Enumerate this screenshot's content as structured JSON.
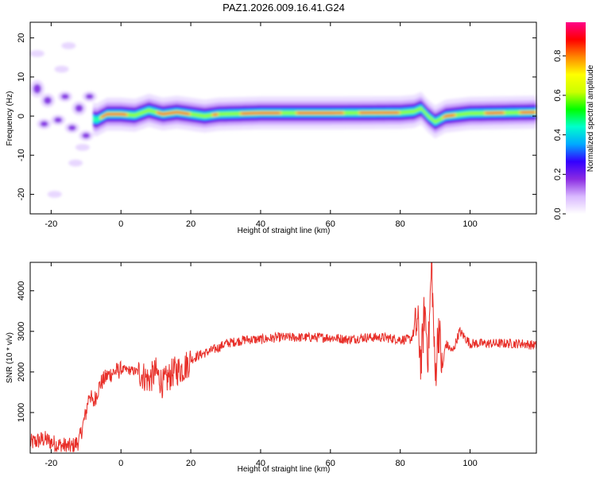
{
  "title": "PAZ1.2026.009.16.41.G24",
  "chart_data": [
    {
      "type": "heatmap",
      "xlabel": "Height of straight line (km)",
      "ylabel": "Frequency (Hz)",
      "xlim": [
        -26,
        119
      ],
      "ylim": [
        -25,
        24
      ],
      "xticks": [
        -20,
        0,
        20,
        40,
        60,
        80,
        100
      ],
      "yticks": [
        -20,
        -10,
        0,
        10,
        20
      ],
      "colorbar": {
        "label": "Normalized spectral amplitude",
        "range": [
          0,
          0.97
        ],
        "ticks": [
          "0.0",
          "0.2",
          "0.4",
          "0.6",
          "0.8"
        ],
        "colors": [
          "#ffffff",
          "#d9b8ff",
          "#8a2be2",
          "#3300ff",
          "#00aaff",
          "#00ffcc",
          "#00ff00",
          "#ccff00",
          "#ffff00",
          "#ff8800",
          "#ff0000",
          "#ff0088"
        ]
      },
      "ridge": [
        {
          "x": -26,
          "f": 4.0
        },
        {
          "x": -22,
          "f": 3.0
        },
        {
          "x": -18,
          "f": 2.5
        },
        {
          "x": -14,
          "f": 1.5
        },
        {
          "x": -10,
          "f": 0.0
        },
        {
          "x": -7,
          "f": -1.0
        },
        {
          "x": -4,
          "f": 0.5
        },
        {
          "x": 0,
          "f": 0.5
        },
        {
          "x": 4,
          "f": 0.2
        },
        {
          "x": 8,
          "f": 1.5
        },
        {
          "x": 12,
          "f": 0.5
        },
        {
          "x": 16,
          "f": 1.0
        },
        {
          "x": 20,
          "f": 0.5
        },
        {
          "x": 24,
          "f": 0.0
        },
        {
          "x": 28,
          "f": 0.5
        },
        {
          "x": 40,
          "f": 0.8
        },
        {
          "x": 60,
          "f": 0.8
        },
        {
          "x": 80,
          "f": 0.9
        },
        {
          "x": 84,
          "f": 1.2
        },
        {
          "x": 86,
          "f": 2.0
        },
        {
          "x": 88,
          "f": 0.0
        },
        {
          "x": 90,
          "f": -1.5
        },
        {
          "x": 93,
          "f": 0.0
        },
        {
          "x": 100,
          "f": 0.7
        },
        {
          "x": 119,
          "f": 1.0
        }
      ],
      "hot_segments": [
        [
          -6,
          2
        ],
        [
          10,
          20
        ],
        [
          26,
          28
        ],
        [
          34,
          46
        ],
        [
          50,
          64
        ],
        [
          68,
          80
        ],
        [
          92,
          96
        ],
        [
          104,
          110
        ],
        [
          114,
          119
        ]
      ]
    },
    {
      "type": "line",
      "xlabel": "Height of straight line (km)",
      "ylabel": "SNR (10 * v/v)",
      "xlim": [
        -26,
        119
      ],
      "ylim": [
        0,
        4700
      ],
      "xticks": [
        -20,
        0,
        20,
        40,
        60,
        80,
        100
      ],
      "yticks": [
        1000,
        2000,
        3000,
        4000
      ],
      "line_color": "#e8302a",
      "series": [
        {
          "x": [
            -26,
            -22,
            -18,
            -14,
            -12,
            -10,
            -9,
            -8,
            -6,
            -4,
            -2,
            0,
            2,
            5,
            8,
            10,
            12,
            15,
            18,
            20,
            22,
            25,
            28,
            30,
            33,
            36,
            40,
            45,
            50,
            55,
            60,
            65,
            70,
            75,
            80,
            83,
            85,
            86,
            87,
            88,
            89,
            90,
            91,
            92,
            93,
            95,
            97,
            100,
            105,
            110,
            115,
            119
          ],
          "y": [
            250,
            350,
            200,
            150,
            300,
            1000,
            1500,
            1200,
            1700,
            1900,
            2000,
            2050,
            2050,
            2000,
            1800,
            2000,
            1700,
            2000,
            2100,
            2300,
            2400,
            2500,
            2600,
            2700,
            2750,
            2800,
            2800,
            2850,
            2850,
            2850,
            2850,
            2800,
            2850,
            2850,
            2800,
            2800,
            3200,
            2200,
            3600,
            2400,
            4700,
            1800,
            3200,
            2000,
            2700,
            2500,
            3000,
            2700,
            2700,
            2700,
            2700,
            2650
          ]
        }
      ]
    }
  ]
}
